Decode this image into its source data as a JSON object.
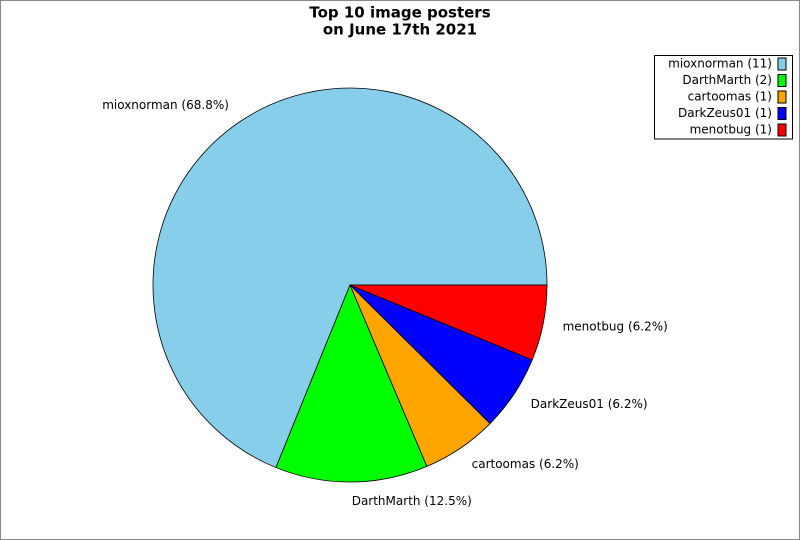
{
  "chart_data": {
    "type": "pie",
    "title": [
      "Top 10 image posters",
      "on June 17th 2021"
    ],
    "categories": [
      "mioxnorman (11)",
      "DarthMarth (2)",
      "cartoomas (1)",
      "DarkZeus01 (1)",
      "menotbug (1)"
    ],
    "values": [
      68.8,
      12.5,
      6.2,
      6.2,
      6.2
    ],
    "value_labels": [
      "mioxnorman (68.8%)",
      "DarthMarth (12.5%)",
      "cartoomas (6.2%)",
      "DarkZeus01 (6.2%)",
      "menotbug (6.2%)"
    ],
    "colors": [
      "#87ceeb",
      "#00ff00",
      "#ffa500",
      "#0000ff",
      "#ff0000"
    ],
    "legend": "upper right"
  }
}
